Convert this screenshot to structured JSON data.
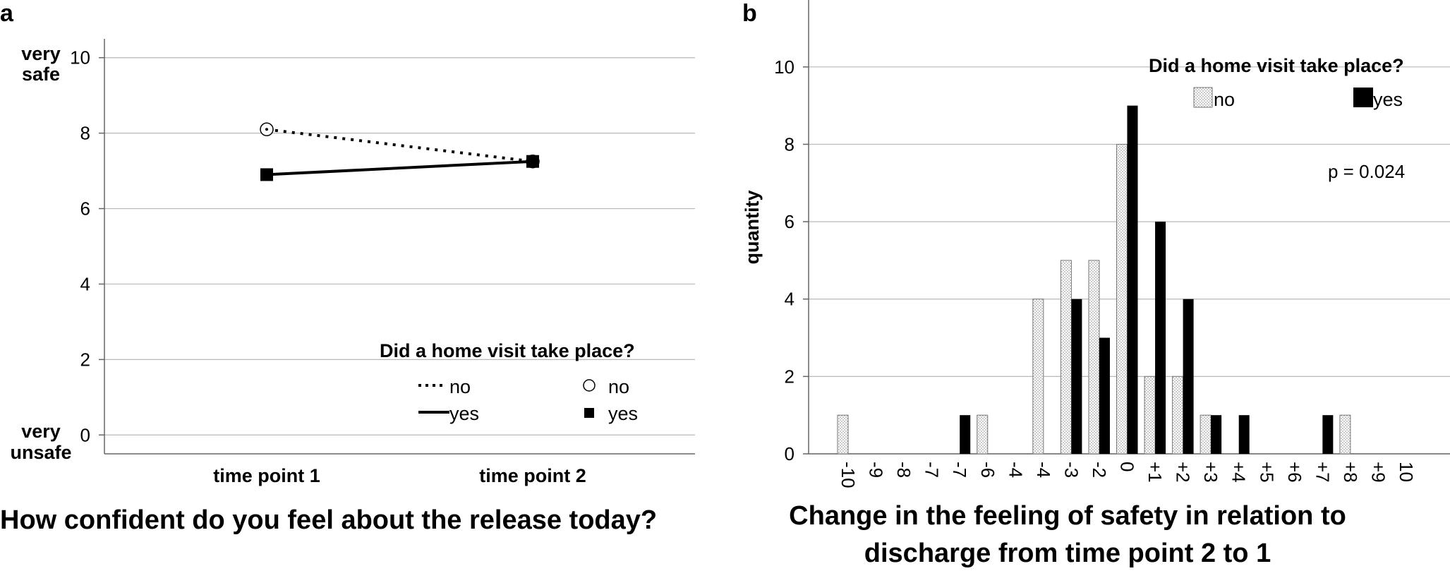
{
  "panel_a": {
    "label": "a",
    "caption": "How confident do you feel about the release today?"
  },
  "panel_b": {
    "label": "b",
    "caption_line1": "Change in the feeling of safety in relation to",
    "caption_line2": "discharge from time point 2 to 1",
    "annotation": "p = 0.024"
  },
  "chart_data": [
    {
      "type": "line",
      "categories": [
        "time point 1",
        "time point 2"
      ],
      "series": [
        {
          "name": "no",
          "values": [
            8.1,
            7.25
          ],
          "line_style": "dotted",
          "marker": "open-circle"
        },
        {
          "name": "yes",
          "values": [
            6.9,
            7.25
          ],
          "line_style": "solid",
          "marker": "filled-square"
        }
      ],
      "ylim": [
        -0.5,
        10.5
      ],
      "yticks": [
        "0",
        "2",
        "4",
        "6",
        "8",
        "10"
      ],
      "ytick_values": [
        0,
        2,
        4,
        6,
        8,
        10
      ],
      "y_end_labels": {
        "top_line1": "very",
        "top_line2": "safe",
        "bottom_line1": "very",
        "bottom_line2": "unsafe"
      },
      "legend_title": "Did a home visit take place?",
      "legend_line_labels": [
        "no",
        "yes"
      ],
      "legend_marker_labels": [
        "no",
        "yes"
      ],
      "legend_position": "bottom-right",
      "grid": true
    },
    {
      "type": "bar",
      "categories": [
        "-10",
        "-9",
        "-8",
        "-7",
        "-7",
        "-6",
        "-4",
        "-4",
        "-3",
        "-2",
        "0",
        "+1",
        "+2",
        "+3",
        "+4",
        "+5",
        "+6",
        "+7",
        "+8",
        "+9",
        "10"
      ],
      "series": [
        {
          "name": "no",
          "values": [
            1,
            0,
            0,
            0,
            0,
            1,
            0,
            4,
            5,
            5,
            8,
            2,
            2,
            1,
            0,
            0,
            0,
            0,
            1,
            0,
            0
          ],
          "fill": "dotted-white"
        },
        {
          "name": "yes",
          "values": [
            0,
            0,
            0,
            0,
            1,
            0,
            0,
            0,
            4,
            3,
            9,
            6,
            4,
            1,
            1,
            0,
            0,
            1,
            0,
            0,
            0
          ],
          "fill": "#000000"
        }
      ],
      "ylabel": "quantity",
      "ylim": [
        0,
        11
      ],
      "yticks": [
        "0",
        "2",
        "4",
        "6",
        "8",
        "10"
      ],
      "ytick_values": [
        0,
        2,
        4,
        6,
        8,
        10
      ],
      "legend_title": "Did a home visit take place?",
      "legend_position": "top-right",
      "grid": true
    }
  ]
}
